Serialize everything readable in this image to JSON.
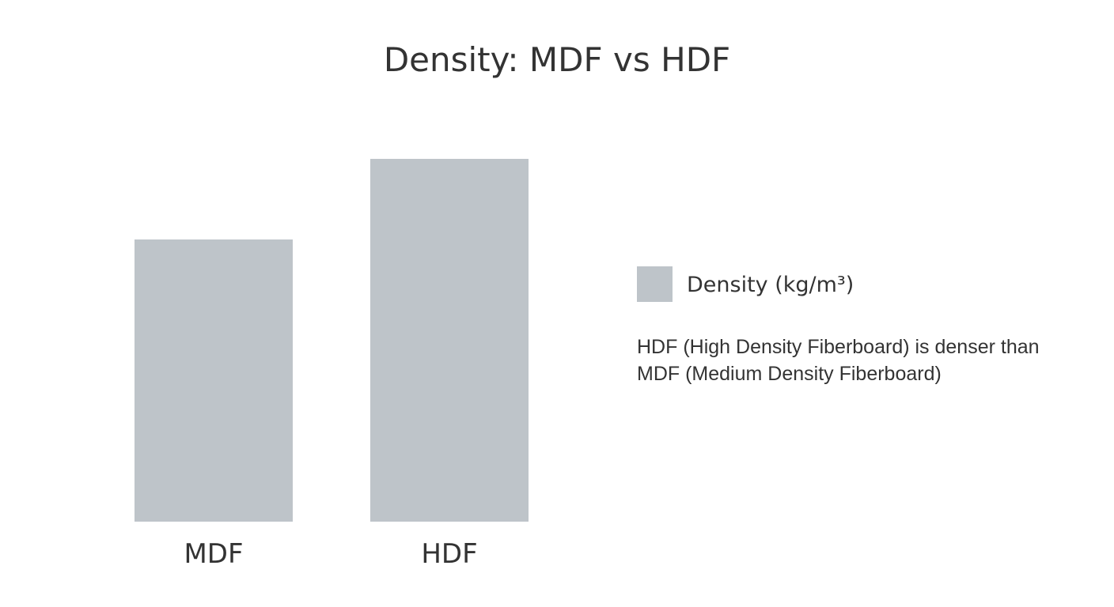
{
  "chart_data": {
    "type": "bar",
    "title": "Density: MDF vs HDF",
    "categories": [
      "MDF",
      "HDF"
    ],
    "series": [
      {
        "name": "Density (kg/m³)",
        "values": [
          700,
          900
        ],
        "color": "#bec4c9"
      }
    ],
    "ylim": [
      0,
      1000
    ],
    "grid": false,
    "legend_position": "right",
    "annotation": "HDF (High Density Fiberboard) is denser than MDF (Medium Density Fiberboard)"
  }
}
